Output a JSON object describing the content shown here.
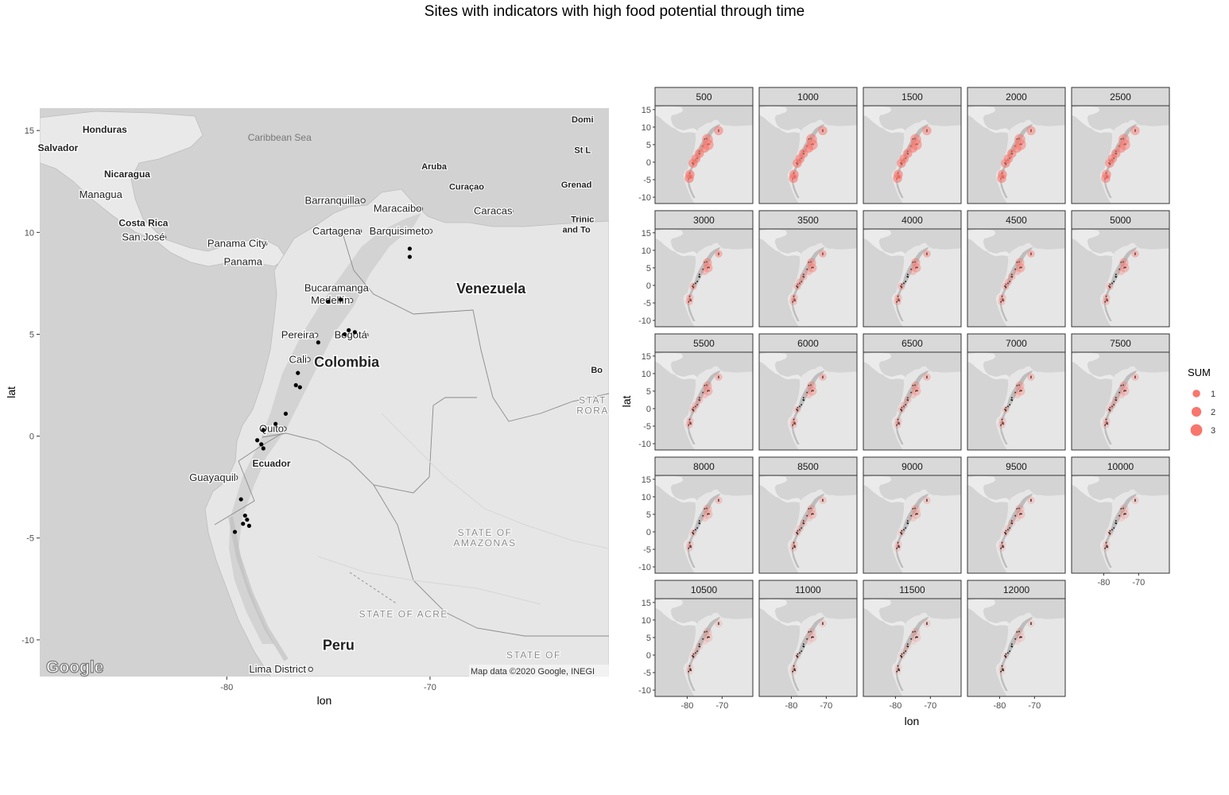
{
  "title": "Sites with indicators with high food potential through time",
  "main_map": {
    "x_axis_label": "lon",
    "y_axis_label": "lat",
    "x_ticks": [
      -80,
      -70
    ],
    "y_ticks": [
      15,
      10,
      5,
      0,
      -5,
      -10
    ],
    "lon_range": [
      -89.2,
      -61.2
    ],
    "lat_range": [
      -11.8,
      16.1
    ],
    "attribution": "Map data ©2020 Google, INEGI",
    "logo": "Google",
    "sea_label": "Caribbean Sea",
    "countries": [
      {
        "name": "Honduras",
        "lon": -86.0,
        "lat": 14.9
      },
      {
        "name": "Salvador",
        "lon": -88.3,
        "lat": 14.0
      },
      {
        "name": "Nicaragua",
        "lon": -84.9,
        "lat": 12.7
      },
      {
        "name": "Costa Rica",
        "lon": -84.1,
        "lat": 10.3
      },
      {
        "name": "Venezuela",
        "lon": -67.0,
        "lat": 7.0
      },
      {
        "name": "Colombia",
        "lon": -74.1,
        "lat": 3.4
      },
      {
        "name": "Ecuador",
        "lon": -77.8,
        "lat": -1.5
      },
      {
        "name": "Peru",
        "lon": -74.5,
        "lat": -10.5
      }
    ],
    "cities": [
      {
        "name": "Managua",
        "lon": -86.2,
        "lat": 11.7
      },
      {
        "name": "San José",
        "lon": -84.1,
        "lat": 9.6
      },
      {
        "name": "Panama City",
        "lon": -79.5,
        "lat": 9.3
      },
      {
        "name": "Panama",
        "lon": -79.2,
        "lat": 8.4
      },
      {
        "name": "Barranquilla",
        "lon": -74.8,
        "lat": 11.4
      },
      {
        "name": "Cartagena",
        "lon": -74.6,
        "lat": 9.9
      },
      {
        "name": "Maracaibo",
        "lon": -71.6,
        "lat": 11.0
      },
      {
        "name": "Barquisimeto",
        "lon": -71.5,
        "lat": 9.9
      },
      {
        "name": "Caracas",
        "lon": -66.9,
        "lat": 10.9
      },
      {
        "name": "Bucaramanga",
        "lon": -74.6,
        "lat": 7.1
      },
      {
        "name": "Medellín",
        "lon": -74.9,
        "lat": 6.5
      },
      {
        "name": "Pereira",
        "lon": -76.5,
        "lat": 4.8
      },
      {
        "name": "Bogotá",
        "lon": -73.9,
        "lat": 4.8
      },
      {
        "name": "Cali",
        "lon": -76.5,
        "lat": 3.6
      },
      {
        "name": "Quito",
        "lon": -77.8,
        "lat": 0.2
      },
      {
        "name": "Guayaquil",
        "lon": -80.7,
        "lat": -2.2
      },
      {
        "name": "Lima District",
        "lon": -77.5,
        "lat": -11.6
      }
    ],
    "edge_labels": [
      {
        "text": "Aruba",
        "lon": -69.8,
        "lat": 13.1
      },
      {
        "text": "Curaçao",
        "lon": -68.2,
        "lat": 12.1
      },
      {
        "text": "Domi",
        "lon": -62.5,
        "lat": 15.4
      },
      {
        "text": "St L",
        "lon": -62.5,
        "lat": 13.9
      },
      {
        "text": "Grenad",
        "lon": -62.8,
        "lat": 12.2
      },
      {
        "text": "Trinic",
        "lon": -62.5,
        "lat": 10.5
      },
      {
        "text": "and To",
        "lon": -62.8,
        "lat": 10.0
      },
      {
        "text": "Bo",
        "lon": -61.8,
        "lat": 3.1
      },
      {
        "text": "STAT",
        "lon": -62.0,
        "lat": 1.6
      },
      {
        "text": "RORA",
        "lon": -62.0,
        "lat": 1.1
      },
      {
        "text": "STATE OF",
        "lon": -67.3,
        "lat": -4.9
      },
      {
        "text": "AMAZONAS",
        "lon": -67.3,
        "lat": -5.4
      },
      {
        "text": "STATE OF ACRE",
        "lon": -71.3,
        "lat": -8.9
      },
      {
        "text": "STATE OF",
        "lon": -64.9,
        "lat": -10.9
      }
    ],
    "sites": [
      {
        "lon": -71.0,
        "lat": 9.2
      },
      {
        "lon": -71.0,
        "lat": 8.8
      },
      {
        "lon": -75.0,
        "lat": 6.6
      },
      {
        "lon": -74.4,
        "lat": 6.7
      },
      {
        "lon": -74.0,
        "lat": 5.2
      },
      {
        "lon": -74.2,
        "lat": 5.0
      },
      {
        "lon": -73.7,
        "lat": 5.1
      },
      {
        "lon": -75.5,
        "lat": 4.6
      },
      {
        "lon": -76.5,
        "lat": 3.1
      },
      {
        "lon": -76.6,
        "lat": 2.5
      },
      {
        "lon": -76.4,
        "lat": 2.4
      },
      {
        "lon": -77.1,
        "lat": 1.1
      },
      {
        "lon": -77.6,
        "lat": 0.6
      },
      {
        "lon": -78.2,
        "lat": 0.3
      },
      {
        "lon": -78.5,
        "lat": -0.2
      },
      {
        "lon": -78.3,
        "lat": -0.4
      },
      {
        "lon": -78.2,
        "lat": -0.6
      },
      {
        "lon": -79.3,
        "lat": -3.1
      },
      {
        "lon": -79.1,
        "lat": -3.9
      },
      {
        "lon": -79.0,
        "lat": -4.1
      },
      {
        "lon": -79.2,
        "lat": -4.3
      },
      {
        "lon": -78.9,
        "lat": -4.4
      },
      {
        "lon": -79.6,
        "lat": -4.7
      }
    ]
  },
  "facets": {
    "x_axis_label": "lon",
    "y_axis_label": "lat",
    "x_ticks": [
      -80,
      -70
    ],
    "y_ticks": [
      15,
      10,
      5,
      0,
      -5,
      -10
    ],
    "lon_range": [
      -89.2,
      -61.2
    ],
    "lat_range": [
      -11.8,
      16.1
    ],
    "panels": [
      "500",
      "1000",
      "1500",
      "2000",
      "2500",
      "3000",
      "3500",
      "4000",
      "4500",
      "5000",
      "5500",
      "6000",
      "6500",
      "7000",
      "7500",
      "8000",
      "8500",
      "9000",
      "9500",
      "10000",
      "10500",
      "11000",
      "11500",
      "12000"
    ]
  },
  "legend": {
    "title": "SUM",
    "items": [
      {
        "label": "1",
        "size": 1
      },
      {
        "label": "2",
        "size": 2
      },
      {
        "label": "3",
        "size": 3
      }
    ],
    "color": "#F8766D"
  },
  "chart_data": {
    "type": "scatter",
    "title": "Sites with indicators with high food potential through time",
    "xlabel": "lon",
    "ylabel": "lat",
    "xlim": [
      -89.2,
      -61.2
    ],
    "ylim": [
      -11.8,
      16.1
    ],
    "size_variable": "SUM",
    "size_levels": [
      1,
      2,
      3
    ],
    "facet_variable": "time",
    "facets": [
      "500",
      "1000",
      "1500",
      "2000",
      "2500",
      "3000",
      "3500",
      "4000",
      "4500",
      "5000",
      "5500",
      "6000",
      "6500",
      "7000",
      "7500",
      "8000",
      "8500",
      "9000",
      "9500",
      "10000",
      "10500",
      "11000",
      "11500",
      "12000"
    ]
  }
}
